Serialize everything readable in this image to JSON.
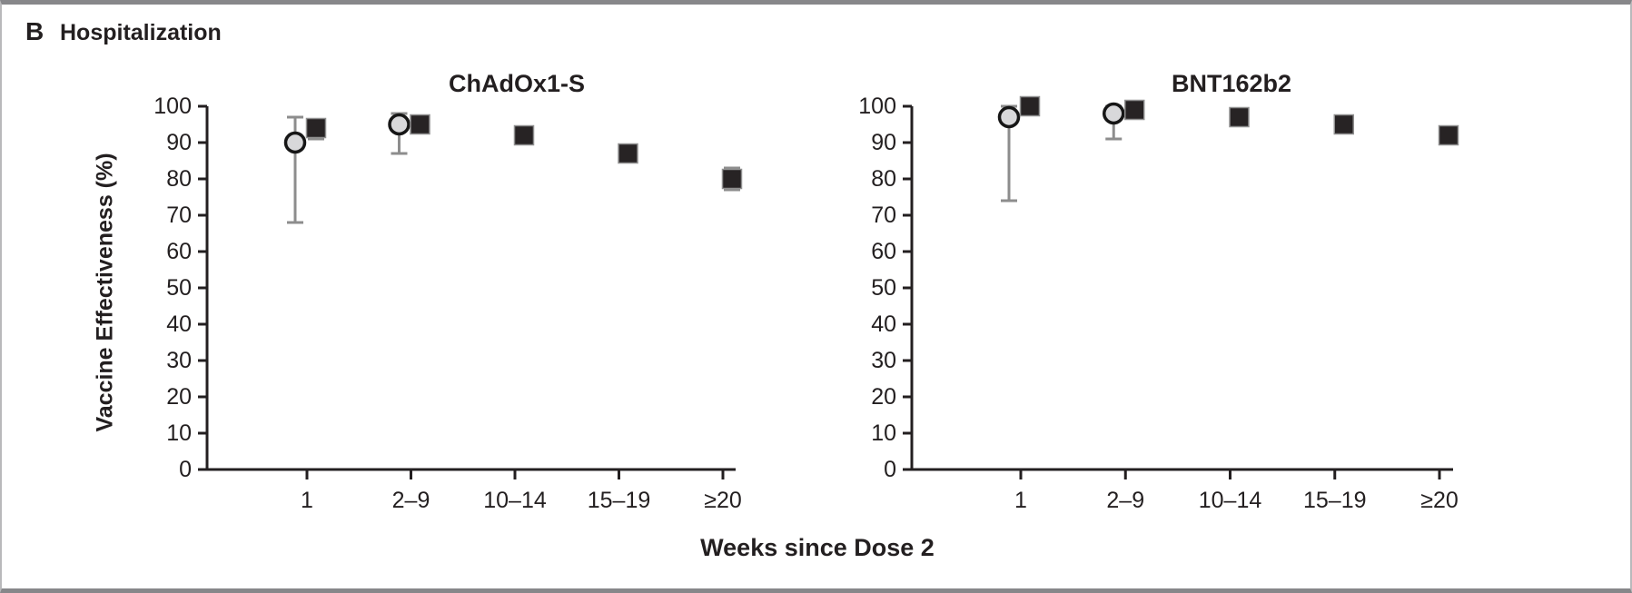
{
  "figure": {
    "panel_letter": "B",
    "panel_title": "Hospitalization",
    "ylabel": "Vaccine Effectiveness (%)",
    "xlabel": "Weeks since Dose 2"
  },
  "chart_data": [
    {
      "type": "scatter",
      "title": "ChAdOx1-S",
      "categories": [
        "1",
        "2–9",
        "10–14",
        "15–19",
        "≥20"
      ],
      "xlabel": "Weeks since Dose 2",
      "ylabel": "Vaccine Effectiveness (%)",
      "ylim": [
        0,
        100
      ],
      "yticks": [
        0,
        10,
        20,
        30,
        40,
        50,
        60,
        70,
        80,
        90,
        100
      ],
      "grid": false,
      "legend": "none",
      "series": [
        {
          "name": "gray-circle",
          "marker": "circle",
          "values": [
            90,
            95,
            null,
            null,
            null
          ],
          "ci_low": [
            68,
            87,
            null,
            null,
            null
          ],
          "ci_high": [
            97,
            98,
            null,
            null,
            null
          ]
        },
        {
          "name": "black-square",
          "marker": "square",
          "values": [
            94,
            95,
            92,
            87,
            80
          ],
          "ci_low": [
            91,
            null,
            null,
            null,
            77
          ],
          "ci_high": [
            96,
            null,
            null,
            null,
            83
          ]
        }
      ]
    },
    {
      "type": "scatter",
      "title": "BNT162b2",
      "categories": [
        "1",
        "2–9",
        "10–14",
        "15–19",
        "≥20"
      ],
      "xlabel": "Weeks since Dose 2",
      "ylabel": "Vaccine Effectiveness (%)",
      "ylim": [
        0,
        100
      ],
      "yticks": [
        0,
        10,
        20,
        30,
        40,
        50,
        60,
        70,
        80,
        90,
        100
      ],
      "grid": false,
      "legend": "none",
      "series": [
        {
          "name": "gray-circle",
          "marker": "circle",
          "values": [
            97,
            98,
            null,
            null,
            null
          ],
          "ci_low": [
            74,
            91,
            null,
            null,
            null
          ],
          "ci_high": [
            100,
            100,
            null,
            null,
            null
          ]
        },
        {
          "name": "black-square",
          "marker": "square",
          "values": [
            100,
            99,
            97,
            95,
            92
          ],
          "ci_low": [
            null,
            null,
            null,
            null,
            null
          ],
          "ci_high": [
            null,
            null,
            null,
            null,
            null
          ]
        }
      ]
    }
  ],
  "style": {
    "background": "#ffffff",
    "frame_color": "#87878a",
    "axis_color": "#231f20",
    "text_color": "#231f20",
    "circle_fill": "#d8d8da",
    "circle_stroke": "#161616",
    "square_fill": "#272324",
    "square_stroke": "#909090",
    "errorbar_color": "#8d8d8d"
  }
}
